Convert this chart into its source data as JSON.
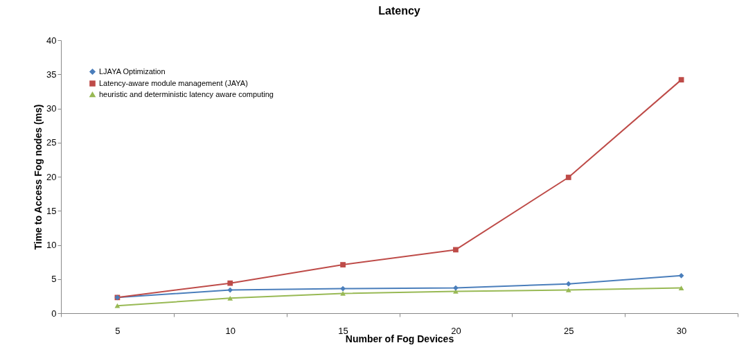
{
  "chart_data": {
    "type": "line",
    "title": "Latency",
    "xlabel": "Number of Fog Devices",
    "ylabel": "Time to Access Fog nodes (ms)",
    "categories": [
      "5",
      "10",
      "15",
      "20",
      "25",
      "30"
    ],
    "series": [
      {
        "name": "LJAYA Optimization",
        "color": "#4a7ebb",
        "marker": "diamond",
        "values": [
          2.3,
          3.4,
          3.6,
          3.7,
          4.3,
          5.5
        ]
      },
      {
        "name": "Latency-aware module management (JAYA)",
        "color": "#be4b48",
        "marker": "square",
        "values": [
          2.3,
          4.4,
          7.1,
          9.3,
          19.9,
          34.2
        ]
      },
      {
        "name": "heuristic and deterministic latency aware computing",
        "color": "#98b954",
        "marker": "triangle",
        "values": [
          1.1,
          2.2,
          2.9,
          3.2,
          3.4,
          3.7
        ]
      }
    ],
    "ylim": [
      0,
      40
    ],
    "yticks": [
      0,
      5,
      10,
      15,
      20,
      25,
      30,
      35,
      40
    ],
    "grid": false,
    "legend": "top left",
    "line_style": "solid"
  }
}
